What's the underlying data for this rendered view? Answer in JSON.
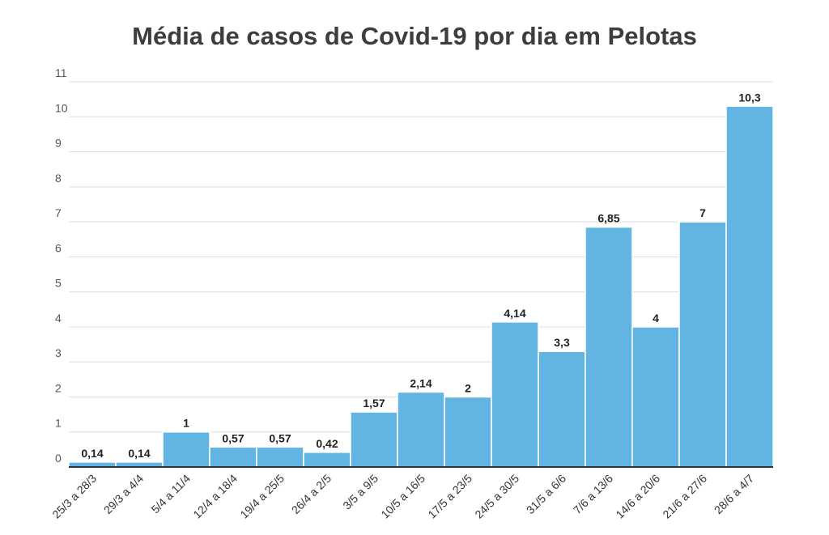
{
  "chart_data": {
    "type": "bar",
    "title": "Média de casos de Covid-19 por dia em Pelotas",
    "xlabel": "",
    "ylabel": "",
    "ylim": [
      0,
      11
    ],
    "yticks": [
      "0",
      "1",
      "2",
      "3",
      "4",
      "5",
      "6",
      "7",
      "8",
      "9",
      "10",
      "11"
    ],
    "grid": true,
    "bar_color": "#62b5e2",
    "categories": [
      "25/3 a 28/3",
      "29/3 a 4/4",
      "5/4 a 11/4",
      "12/4 a 18/4",
      "19/4 a 25/5",
      "26/4 a 2/5",
      "3/5 a 9/5",
      "10/5 a 16/5",
      "17/5 a 23/5",
      "24/5 a 30/5",
      "31/5 a 6/6",
      "7/6 a 13/6",
      "14/6 a 20/6",
      "21/6 a 27/6",
      "28/6 a 4/7"
    ],
    "values": [
      0.14,
      0.14,
      1,
      0.57,
      0.57,
      0.42,
      1.57,
      2.14,
      2,
      4.14,
      3.3,
      6.85,
      4,
      7,
      10.3
    ],
    "data_labels": [
      "0,14",
      "0,14",
      "1",
      "0,57",
      "0,57",
      "0,42",
      "1,57",
      "2,14",
      "2",
      "4,14",
      "3,3",
      "6,85",
      "4",
      "7",
      "10,3"
    ]
  }
}
